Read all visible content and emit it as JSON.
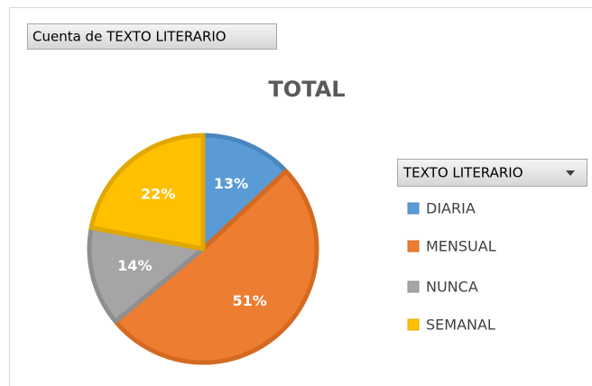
{
  "chart_data": {
    "type": "pie",
    "field_button": "Cuenta de TEXTO LITERARIO",
    "title": "TOTAL",
    "legend_title": "TEXTO LITERARIO",
    "legend": "right",
    "categories": [
      "DIARIA",
      "MENSUAL",
      "NUNCA",
      "SEMANAL"
    ],
    "values": [
      13,
      51,
      14,
      22
    ],
    "value_labels": [
      "13%",
      "51%",
      "14%",
      "22%"
    ],
    "colors": [
      "#5b9bd5",
      "#ed7d31",
      "#a5a5a5",
      "#ffc000"
    ],
    "edge_colors": [
      "#4a86be",
      "#d46a22",
      "#8f8f8f",
      "#e0a800"
    ]
  }
}
